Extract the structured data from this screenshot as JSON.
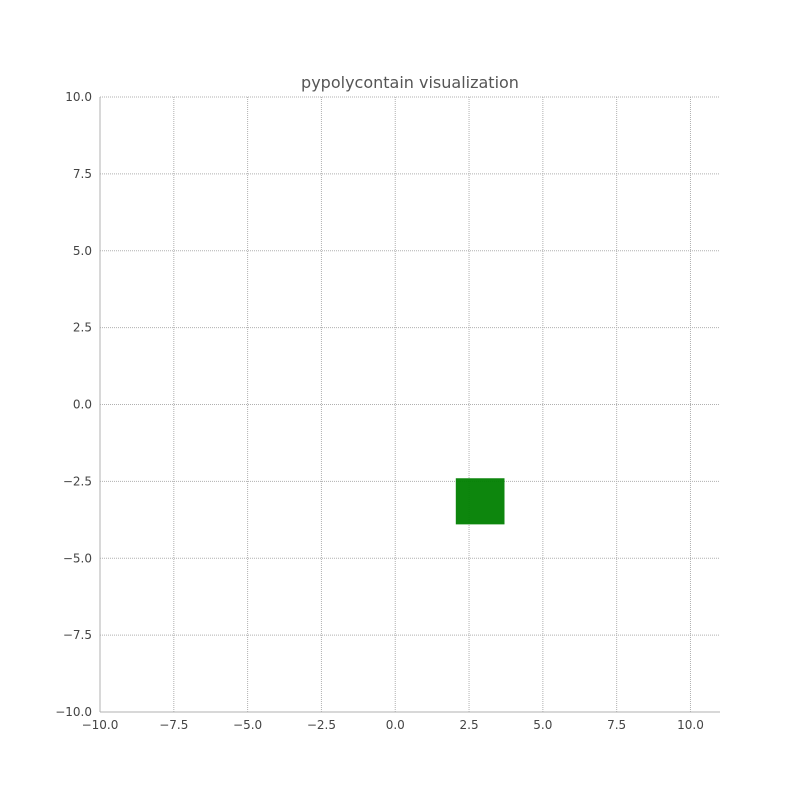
{
  "chart_data": {
    "type": "polygon",
    "title": "pypolycontain visualization",
    "xlabel": "",
    "ylabel": "",
    "xlim": [
      -10,
      11
    ],
    "ylim": [
      -10,
      10
    ],
    "grid": true,
    "x_ticks": [
      "−10.0",
      "−7.5",
      "−5.0",
      "−2.5",
      "0.0",
      "2.5",
      "5.0",
      "7.5",
      "10.0"
    ],
    "x_tick_values": [
      -10,
      -7.5,
      -5,
      -2.5,
      0,
      2.5,
      5,
      7.5,
      10
    ],
    "y_ticks": [
      "10.0",
      "7.5",
      "5.0",
      "2.5",
      "0.0",
      "−2.5",
      "−5.0",
      "−7.5",
      "−10.0"
    ],
    "y_tick_values": [
      10,
      7.5,
      5,
      2.5,
      0,
      -2.5,
      -5,
      -7.5,
      -10
    ],
    "polygons": [
      {
        "color": "#008000",
        "vertices": [
          [
            2.05,
            -2.4
          ],
          [
            3.7,
            -2.4
          ],
          [
            3.7,
            -3.9
          ],
          [
            2.05,
            -3.9
          ]
        ]
      }
    ]
  }
}
